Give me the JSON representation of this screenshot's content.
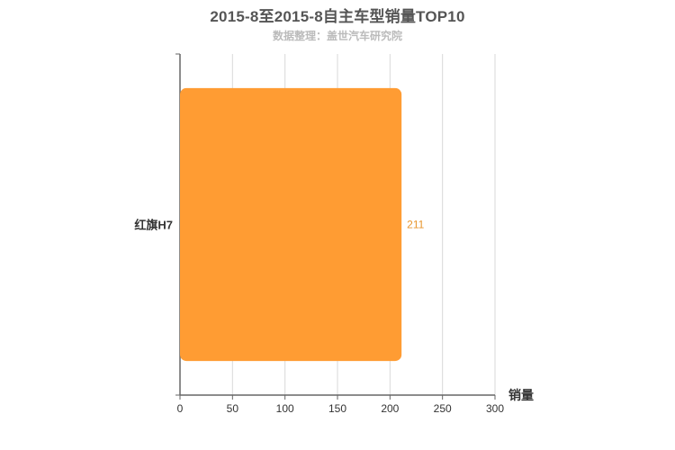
{
  "header": {
    "title": "2015-8至2015-8自主车型销量TOP10",
    "subtitle": "数据整理：盖世汽车研究院"
  },
  "colors": {
    "bar": "#ff9c33",
    "value_label": "#e8962e",
    "axis": "#666666",
    "grid": "#d9d9d9",
    "tick_text": "#333333"
  },
  "chart_data": {
    "type": "bar",
    "orientation": "horizontal",
    "categories": [
      "红旗H7"
    ],
    "values": [
      211
    ],
    "xlabel": "销量",
    "ylabel": "",
    "xlim": [
      0,
      300
    ],
    "xticks": [
      0,
      50,
      100,
      150,
      200,
      250,
      300
    ],
    "grid": true,
    "data_labels": true
  }
}
